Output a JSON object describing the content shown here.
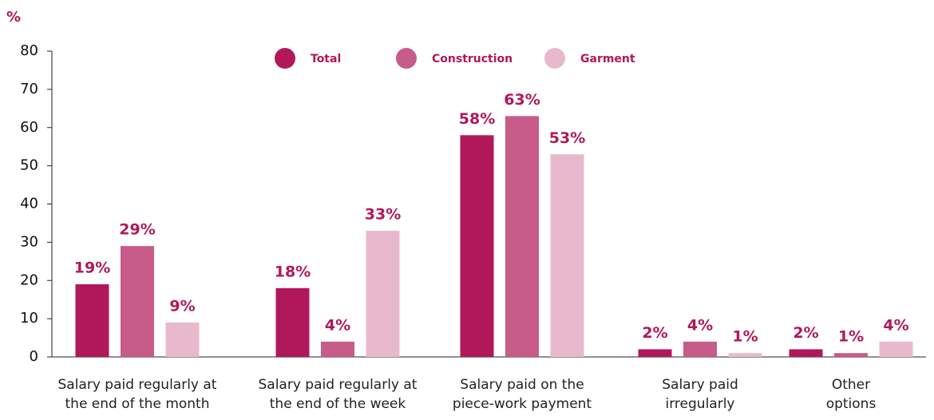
{
  "chart_data": {
    "type": "bar",
    "y_label": "%",
    "categories": [
      "Salary paid regularly at the end of the month",
      "Salary paid regularly at the end of the week",
      "Salary paid on the piece-work payment",
      "Salary paid irregularly",
      "Other options"
    ],
    "series": [
      {
        "name": "Total",
        "color": "#b0185a",
        "values": [
          19,
          18,
          58,
          2,
          2
        ],
        "value_labels": [
          "19%",
          "18%",
          "58%",
          "2%",
          "2%"
        ]
      },
      {
        "name": "Construction",
        "color": "#c75b8a",
        "values": [
          29,
          4,
          63,
          4,
          1
        ],
        "value_labels": [
          "29%",
          "4%",
          "63%",
          "4%",
          "1%"
        ]
      },
      {
        "name": "Garment",
        "color": "#e8b9cd",
        "values": [
          9,
          33,
          53,
          1,
          4
        ],
        "value_labels": [
          "9%",
          "33%",
          "53%",
          "1%",
          "4%"
        ]
      }
    ],
    "ylim": [
      0,
      80
    ],
    "yticks": [
      0,
      10,
      20,
      30,
      40,
      50,
      60,
      70,
      80
    ],
    "label_color": "#b0185a"
  }
}
